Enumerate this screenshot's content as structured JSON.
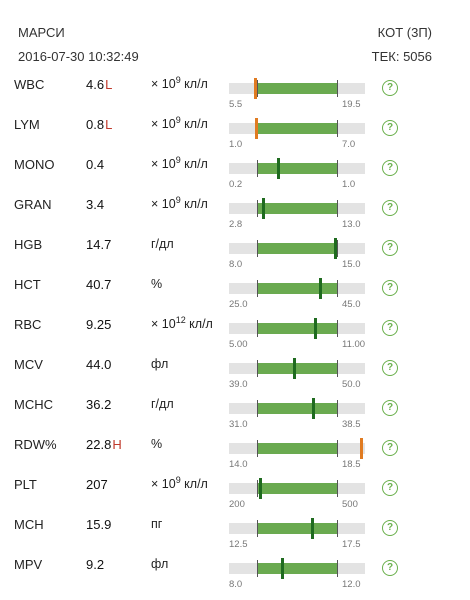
{
  "header": {
    "patient_name": "МАРСИ",
    "datetime": "2016-07-30 10:32:49",
    "species": "КОТ (3П)",
    "tek": "ТЕК: 5056"
  },
  "rows": [
    {
      "name": "WBC",
      "value": "4.6",
      "flag": "L",
      "unit_base": "× 10",
      "unit_exp": "9",
      "unit_tail": " кл/л",
      "low": "5.5",
      "high": "19.5",
      "level": 0.14,
      "marker": "low"
    },
    {
      "name": "LYM",
      "value": "0.8",
      "flag": "L",
      "unit_base": "× 10",
      "unit_exp": "9",
      "unit_tail": " кл/л",
      "low": "1.0",
      "high": "7.0",
      "level": 0.18,
      "marker": "low"
    },
    {
      "name": "MONO",
      "value": "0.4",
      "flag": "",
      "unit_base": "× 10",
      "unit_exp": "9",
      "unit_tail": " кл/л",
      "low": "0.2",
      "high": "1.0",
      "level": 0.25,
      "marker": "normal"
    },
    {
      "name": "GRAN",
      "value": "3.4",
      "flag": "",
      "unit_base": "× 10",
      "unit_exp": "9",
      "unit_tail": " кл/л",
      "low": "2.8",
      "high": "13.0",
      "level": 0.06,
      "marker": "normal"
    },
    {
      "name": "HGB",
      "value": "14.7",
      "flag": "",
      "unit_base": "г/дл",
      "unit_exp": "",
      "unit_tail": "",
      "low": "8.0",
      "high": "15.0",
      "level": 0.96,
      "marker": "normal"
    },
    {
      "name": "HCT",
      "value": "40.7",
      "flag": "",
      "unit_base": "%",
      "unit_exp": "",
      "unit_tail": "",
      "low": "25.0",
      "high": "45.0",
      "level": 0.78,
      "marker": "normal"
    },
    {
      "name": "RBC",
      "value": "9.25",
      "flag": "",
      "unit_base": "× 10",
      "unit_exp": "12",
      "unit_tail": " кл/л",
      "low": "5.00",
      "high": "11.00",
      "level": 0.71,
      "marker": "normal"
    },
    {
      "name": "MCV",
      "value": "44.0",
      "flag": "",
      "unit_base": "фл",
      "unit_exp": "",
      "unit_tail": "",
      "low": "39.0",
      "high": "50.0",
      "level": 0.45,
      "marker": "normal"
    },
    {
      "name": "MCHC",
      "value": "36.2",
      "flag": "",
      "unit_base": "г/дл",
      "unit_exp": "",
      "unit_tail": "",
      "low": "31.0",
      "high": "38.5",
      "level": 0.69,
      "marker": "normal"
    },
    {
      "name": "RDW%",
      "value": "22.8",
      "flag": "H",
      "unit_base": "%",
      "unit_exp": "",
      "unit_tail": "",
      "low": "14.0",
      "high": "18.5",
      "level": 1.3,
      "marker": "high"
    },
    {
      "name": "PLT",
      "value": "207",
      "flag": "",
      "unit_base": "× 10",
      "unit_exp": "9",
      "unit_tail": " кл/л",
      "low": "200",
      "high": "500",
      "level": 0.02,
      "marker": "normal"
    },
    {
      "name": "MCH",
      "value": "15.9",
      "flag": "",
      "unit_base": "пг",
      "unit_exp": "",
      "unit_tail": "",
      "low": "12.5",
      "high": "17.5",
      "level": 0.68,
      "marker": "normal"
    },
    {
      "name": "MPV",
      "value": "9.2",
      "flag": "",
      "unit_base": "фл",
      "unit_exp": "",
      "unit_tail": "",
      "low": "8.0",
      "high": "12.0",
      "level": 0.3,
      "marker": "normal"
    }
  ],
  "help_icon_glyph": "?",
  "colors": {
    "normal_fill": "#6aaa50",
    "marker_normal": "#1f6b1f",
    "marker_out": "#e07b21",
    "flag": "#c0392b",
    "help": "#6ab04c"
  }
}
